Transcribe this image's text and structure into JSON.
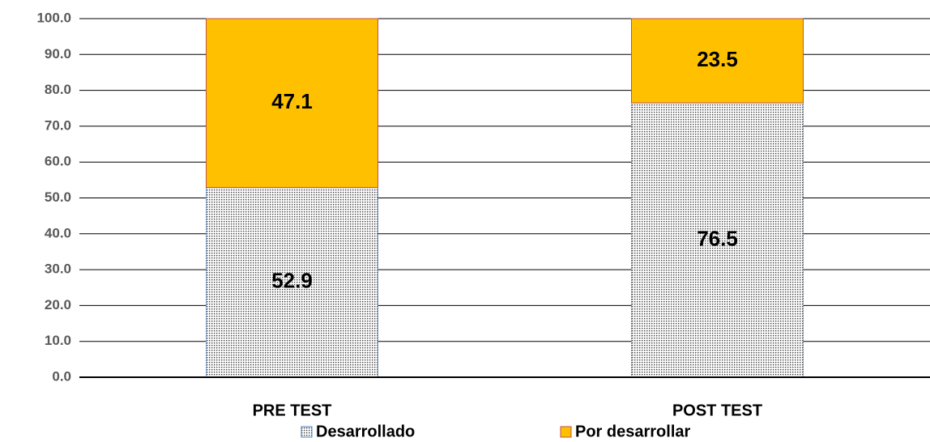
{
  "chart_data": {
    "type": "stacked_bar",
    "categories": [
      "PRE TEST",
      "POST TEST"
    ],
    "series": [
      {
        "name": "Desarrollado",
        "color": "#404040",
        "pattern": "dots",
        "values": [
          52.9,
          76.5
        ]
      },
      {
        "name": "Por desarrollar",
        "color": "#ffc000",
        "values": [
          47.1,
          23.5
        ]
      }
    ],
    "ylim": [
      0,
      100
    ],
    "yticks": [
      {
        "value": 0,
        "label": "0.0"
      },
      {
        "value": 10,
        "label": "10.0"
      },
      {
        "value": 20,
        "label": "20.0"
      },
      {
        "value": 30,
        "label": "30.0"
      },
      {
        "value": 40,
        "label": "40.0"
      },
      {
        "value": 50,
        "label": "50.0"
      },
      {
        "value": 60,
        "label": "60.0"
      },
      {
        "value": 70,
        "label": "70.0"
      },
      {
        "value": 80,
        "label": "80.0"
      },
      {
        "value": 90,
        "label": "90.0"
      },
      {
        "value": 100,
        "label": "100.0"
      }
    ],
    "grid": true,
    "legend": "bottom"
  }
}
